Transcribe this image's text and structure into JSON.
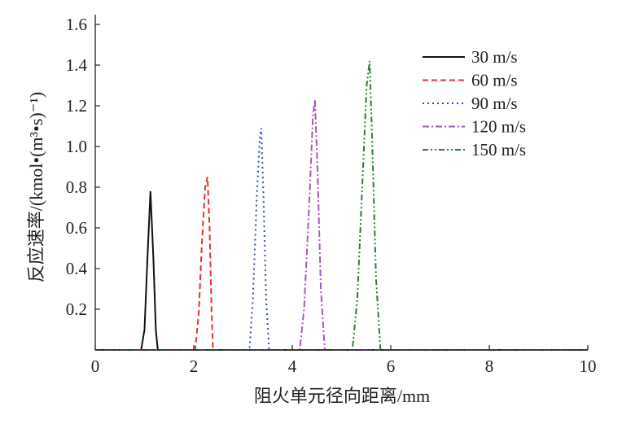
{
  "chart_data": {
    "type": "line",
    "title": "",
    "xlabel": "阻火单元径向距离/mm",
    "ylabel": "反应速率/(kmol•(m³•s)⁻¹)",
    "xlim": [
      0,
      10
    ],
    "ylim": [
      0,
      1.6
    ],
    "xticks": [
      "0",
      "2",
      "4",
      "6",
      "8",
      "10"
    ],
    "yticks": [
      "0.2",
      "0.4",
      "0.6",
      "0.8",
      "1.0",
      "1.2",
      "1.4",
      "1.6"
    ],
    "grid": false,
    "legend_position": "top-right",
    "series": [
      {
        "name": "30 m/s",
        "color": "#111111",
        "dash": "solid",
        "x": [
          0,
          0.93,
          1.0,
          1.06,
          1.12,
          1.18,
          1.23,
          1.27,
          10
        ],
        "y": [
          0,
          0,
          0.1,
          0.45,
          0.78,
          0.45,
          0.1,
          0,
          0
        ]
      },
      {
        "name": "60 m/s",
        "color": "#e8322b",
        "dash": "dashed",
        "x": [
          0,
          2.03,
          2.1,
          2.17,
          2.23,
          2.28,
          2.32,
          2.36,
          2.39,
          10
        ],
        "y": [
          0,
          0,
          0.18,
          0.55,
          0.8,
          0.85,
          0.6,
          0.2,
          0,
          0
        ]
      },
      {
        "name": "90 m/s",
        "color": "#2d4ea3",
        "dash": "dotted",
        "x": [
          0,
          3.13,
          3.2,
          3.28,
          3.34,
          3.37,
          3.41,
          3.47,
          3.53,
          10
        ],
        "y": [
          0,
          0,
          0.25,
          0.75,
          1.04,
          1.09,
          0.8,
          0.25,
          0,
          0
        ]
      },
      {
        "name": "120 m/s",
        "color": "#a35bb8",
        "dash": "dashdot",
        "x": [
          0,
          4.15,
          4.24,
          4.34,
          4.42,
          4.46,
          4.51,
          4.58,
          4.66,
          10
        ],
        "y": [
          0,
          0,
          0.2,
          0.7,
          1.15,
          1.23,
          0.9,
          0.3,
          0,
          0
        ]
      },
      {
        "name": "150 m/s",
        "color": "#2e7d32",
        "dash": "dashdotdot",
        "x": [
          0,
          5.22,
          5.32,
          5.42,
          5.51,
          5.57,
          5.62,
          5.7,
          5.79,
          10
        ],
        "y": [
          0,
          0,
          0.25,
          0.8,
          1.3,
          1.42,
          1.05,
          0.35,
          0,
          0
        ]
      }
    ]
  }
}
